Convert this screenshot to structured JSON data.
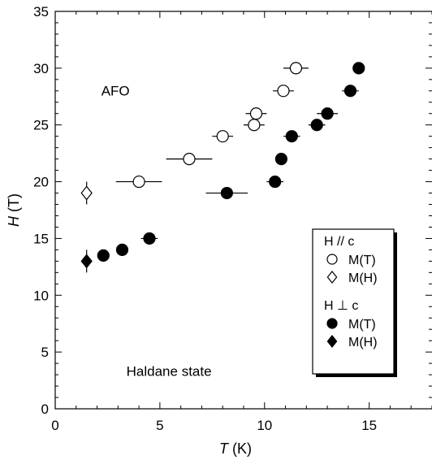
{
  "chart_data": {
    "type": "scatter",
    "title": "",
    "xlabel": {
      "var": "T",
      "unit": " (K)"
    },
    "ylabel": {
      "var": "H",
      "unit": " (T)"
    },
    "xlim": [
      0,
      18
    ],
    "ylim": [
      0,
      35
    ],
    "x_ticks": [
      0,
      5,
      10,
      15
    ],
    "y_ticks": [
      0,
      5,
      10,
      15,
      20,
      25,
      30,
      35
    ],
    "x_minor_step": 1,
    "y_minor_step": 1,
    "grid": false,
    "legend_position": "lower-right",
    "annotations": [
      {
        "text": "AFO",
        "x": 2.2,
        "y": 27.6
      },
      {
        "text": "Haldane state",
        "x": 3.4,
        "y": 2.9
      }
    ],
    "legend_groups": [
      {
        "header": "H // c",
        "series": [
          "H_par_c_MT",
          "H_par_c_MH"
        ]
      },
      {
        "header": "H ⊥ c",
        "series": [
          "H_perp_c_MT",
          "H_perp_c_MH"
        ]
      }
    ],
    "series": [
      {
        "id": "H_par_c_MT",
        "name": "M(T)",
        "marker": "circle",
        "filled": false,
        "points": [
          {
            "x": 4.0,
            "y": 20,
            "xerr": 1.1
          },
          {
            "x": 6.4,
            "y": 22,
            "xerr": 1.1
          },
          {
            "x": 8.0,
            "y": 24,
            "xerr": 0.5
          },
          {
            "x": 9.5,
            "y": 25,
            "xerr": 0.5
          },
          {
            "x": 9.6,
            "y": 26,
            "xerr": 0.5
          },
          {
            "x": 10.9,
            "y": 28,
            "xerr": 0.5
          },
          {
            "x": 11.5,
            "y": 30,
            "xerr": 0.6
          }
        ]
      },
      {
        "id": "H_par_c_MH",
        "name": "M(H)",
        "marker": "diamond",
        "filled": false,
        "points": [
          {
            "x": 1.5,
            "y": 19,
            "yerr": 1.0
          }
        ]
      },
      {
        "id": "H_perp_c_MT",
        "name": "M(T)",
        "marker": "circle",
        "filled": true,
        "points": [
          {
            "x": 2.3,
            "y": 13.5,
            "xerr": 0
          },
          {
            "x": 3.2,
            "y": 14,
            "xerr": 0
          },
          {
            "x": 4.5,
            "y": 15,
            "xerr": 0.4
          },
          {
            "x": 8.2,
            "y": 19,
            "xerr": 1.0
          },
          {
            "x": 10.5,
            "y": 20,
            "xerr": 0.4
          },
          {
            "x": 10.8,
            "y": 22,
            "xerr": 0
          },
          {
            "x": 11.3,
            "y": 24,
            "xerr": 0.4
          },
          {
            "x": 12.5,
            "y": 25,
            "xerr": 0.4
          },
          {
            "x": 13.0,
            "y": 26,
            "xerr": 0.5
          },
          {
            "x": 14.1,
            "y": 28,
            "xerr": 0.4
          },
          {
            "x": 14.5,
            "y": 30,
            "xerr": 0
          }
        ]
      },
      {
        "id": "H_perp_c_MH",
        "name": "M(H)",
        "marker": "diamond",
        "filled": true,
        "points": [
          {
            "x": 1.5,
            "y": 13,
            "yerr": 1.0
          }
        ]
      }
    ]
  }
}
